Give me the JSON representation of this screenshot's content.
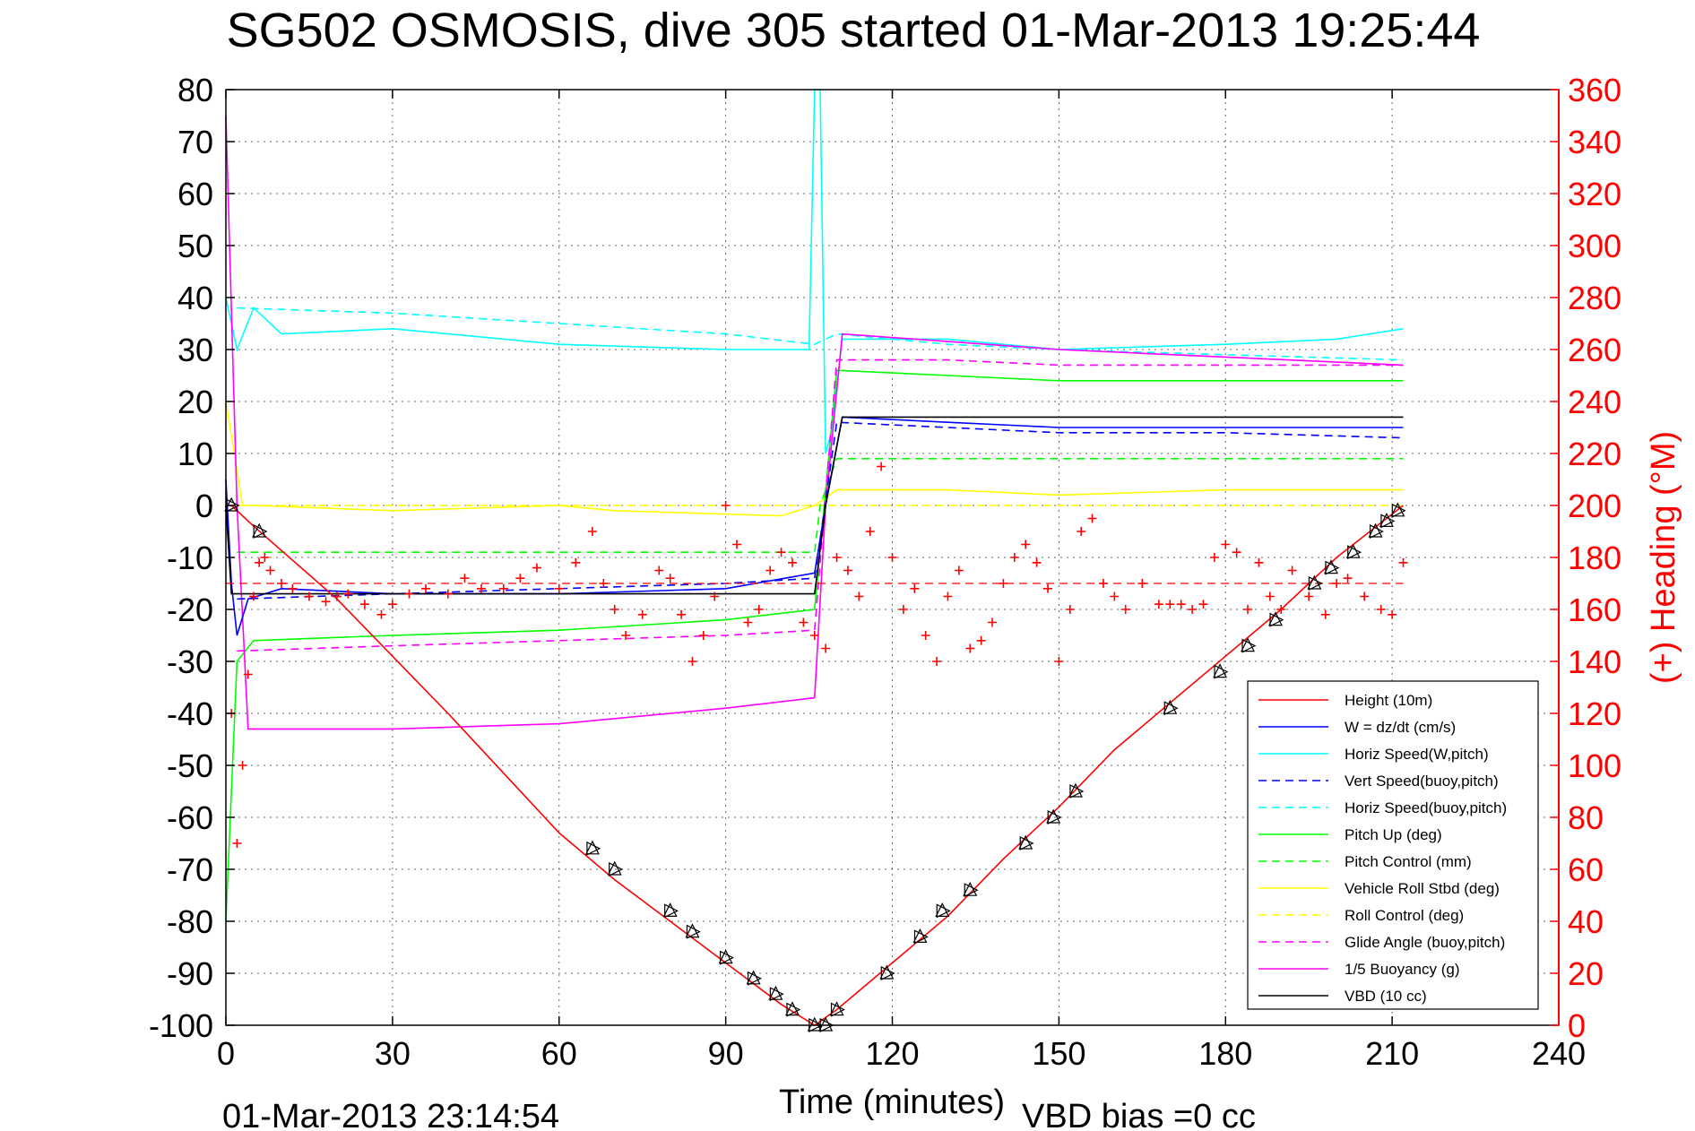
{
  "chart_data": {
    "type": "line",
    "title": "SG502 OSMOSIS, dive 305 started 01-Mar-2013 19:25:44",
    "xlabel": "Time (minutes)",
    "ylabel": "",
    "y2label": "(+) Heading (°M)",
    "footer_left": "01-Mar-2013 23:14:54",
    "footer_right": "VBD bias =0 cc",
    "xlim": [
      0,
      240
    ],
    "ylim": [
      -100,
      80
    ],
    "y2lim": [
      0,
      360
    ],
    "x_ticks": [
      0,
      30,
      60,
      90,
      120,
      150,
      180,
      210,
      240
    ],
    "y_ticks": [
      80,
      70,
      60,
      50,
      40,
      30,
      20,
      10,
      0,
      -10,
      -20,
      -30,
      -40,
      -50,
      -60,
      -70,
      -80,
      -90,
      -100
    ],
    "y2_ticks": [
      360,
      340,
      320,
      300,
      280,
      260,
      240,
      220,
      200,
      180,
      160,
      140,
      120,
      100,
      80,
      60,
      40,
      20,
      0
    ],
    "grid": true,
    "legend_position": "bottom-right",
    "colors": {
      "height": "#ff0000",
      "w": "#0000ff",
      "horiz": "#00ffff",
      "pitch": "#00ff00",
      "roll": "#ffff00",
      "glide": "#ff00ff",
      "buoy": "#ff00ff",
      "vbd": "#000000",
      "heading": "#ff0000"
    },
    "series": [
      {
        "name": "Height (10m)",
        "key": "height",
        "color": "#ff0000",
        "dash": "",
        "x": [
          0,
          1,
          5,
          20,
          40,
          60,
          70,
          80,
          90,
          100,
          106,
          110,
          120,
          130,
          140,
          150,
          160,
          170,
          180,
          190,
          200,
          212
        ],
        "y": [
          0,
          0,
          -4,
          -18,
          -40,
          -63,
          -72,
          -80,
          -88,
          -96,
          -100,
          -97,
          -88,
          -79,
          -68,
          -58,
          -47,
          -38,
          -29,
          -20,
          -10,
          0
        ]
      },
      {
        "name": "W = dz/dt (cm/s)",
        "key": "w",
        "color": "#0000ff",
        "dash": "",
        "x": [
          0,
          1,
          2,
          4,
          10,
          30,
          60,
          90,
          106,
          108,
          111,
          130,
          150,
          180,
          212
        ],
        "y": [
          5,
          -15,
          -25,
          -18,
          -16,
          -17,
          -17,
          -16,
          -13,
          0,
          17,
          16,
          15,
          15,
          15
        ]
      },
      {
        "name": "Horiz Speed(W,pitch)",
        "key": "horiz",
        "color": "#00ffff",
        "dash": "",
        "x": [
          0,
          1,
          2,
          5,
          10,
          30,
          60,
          90,
          105,
          106,
          107,
          108,
          109,
          111,
          130,
          150,
          180,
          200,
          212
        ],
        "y": [
          40,
          35,
          30,
          38,
          33,
          34,
          31,
          30,
          30,
          80,
          80,
          10,
          14,
          32,
          32,
          30,
          31,
          32,
          34
        ]
      },
      {
        "name": "Vert Speed(buoy,pitch)",
        "key": "vertb",
        "color": "#0000ff",
        "dash": "9,6",
        "x": [
          2,
          30,
          60,
          90,
          106,
          110,
          130,
          150,
          180,
          212
        ],
        "y": [
          -18,
          -17,
          -16,
          -15,
          -14,
          16,
          15,
          14,
          14,
          13
        ]
      },
      {
        "name": "Horiz Speed(buoy,pitch)",
        "key": "horizb",
        "color": "#00ffff",
        "dash": "9,6",
        "x": [
          2,
          30,
          60,
          90,
          106,
          110,
          130,
          150,
          180,
          212
        ],
        "y": [
          38,
          37,
          35,
          33,
          31,
          33,
          31,
          30,
          29,
          28
        ]
      },
      {
        "name": "Pitch Up (deg)",
        "key": "pitch",
        "color": "#00ff00",
        "dash": "",
        "x": [
          0,
          2,
          5,
          30,
          60,
          90,
          106,
          110,
          130,
          150,
          180,
          212
        ],
        "y": [
          -80,
          -30,
          -26,
          -25,
          -24,
          -22,
          -20,
          26,
          25,
          24,
          24,
          24
        ]
      },
      {
        "name": "Pitch Control (mm)",
        "key": "pitchc",
        "color": "#00ff00",
        "dash": "9,6",
        "x": [
          2,
          106,
          107,
          110,
          212
        ],
        "y": [
          -9,
          -9,
          0,
          9,
          9
        ]
      },
      {
        "name": "Vehicle Roll Stbd (deg)",
        "key": "roll",
        "color": "#ffff00",
        "dash": "",
        "x": [
          0,
          3,
          5,
          30,
          60,
          70,
          100,
          106,
          110,
          130,
          150,
          180,
          212
        ],
        "y": [
          20,
          0,
          0,
          -1,
          0,
          -1,
          -2,
          0,
          3,
          3,
          2,
          3,
          3
        ]
      },
      {
        "name": "Roll Control (deg)",
        "key": "rollc",
        "color": "#ffff00",
        "dash": "9,6",
        "x": [
          2,
          106,
          110,
          212
        ],
        "y": [
          0,
          0,
          0,
          0
        ]
      },
      {
        "name": "Glide Angle (buoy,pitch)",
        "key": "glide",
        "color": "#ff00ff",
        "dash": "9,6",
        "x": [
          2,
          30,
          60,
          90,
          106,
          110,
          130,
          150,
          180,
          212
        ],
        "y": [
          -28,
          -27,
          -26,
          -25,
          -24,
          28,
          28,
          27,
          27,
          27
        ]
      },
      {
        "name": "1/5 Buoyancy (g)",
        "key": "buoy",
        "color": "#ff00ff",
        "dash": "",
        "x": [
          0,
          2,
          4,
          30,
          60,
          90,
          106,
          108,
          111,
          150,
          212
        ],
        "y": [
          75,
          0,
          -43,
          -43,
          -42,
          -39,
          -37,
          0,
          33,
          30,
          27
        ]
      },
      {
        "name": "VBD (10 cc)",
        "key": "vbd",
        "color": "#000000",
        "dash": "",
        "x": [
          0,
          1,
          2,
          106,
          108,
          111,
          212
        ],
        "y": [
          0,
          -17,
          -17,
          -17,
          0,
          17,
          17
        ]
      }
    ],
    "heading_points": {
      "name": "(+) Heading (°M)",
      "color": "#ff0000",
      "x": [
        1,
        2,
        3,
        4,
        5,
        6,
        7,
        8,
        10,
        12,
        15,
        18,
        20,
        22,
        25,
        28,
        30,
        33,
        36,
        40,
        43,
        46,
        50,
        53,
        56,
        60,
        63,
        66,
        68,
        70,
        72,
        75,
        78,
        80,
        82,
        84,
        86,
        88,
        90,
        92,
        94,
        96,
        98,
        100,
        102,
        104,
        106,
        108,
        110,
        112,
        114,
        116,
        118,
        120,
        122,
        124,
        126,
        128,
        130,
        132,
        134,
        136,
        138,
        140,
        142,
        144,
        146,
        148,
        150,
        152,
        154,
        156,
        158,
        160,
        162,
        165,
        168,
        170,
        172,
        174,
        176,
        178,
        180,
        182,
        184,
        186,
        188,
        190,
        192,
        195,
        198,
        200,
        202,
        205,
        208,
        210,
        212
      ],
      "y": [
        120,
        70,
        100,
        135,
        165,
        178,
        180,
        175,
        170,
        168,
        165,
        163,
        165,
        166,
        162,
        158,
        162,
        166,
        168,
        166,
        172,
        168,
        168,
        172,
        176,
        168,
        178,
        190,
        170,
        160,
        150,
        158,
        175,
        172,
        158,
        140,
        150,
        165,
        200,
        185,
        155,
        160,
        175,
        182,
        178,
        155,
        150,
        145,
        180,
        175,
        165,
        190,
        215,
        180,
        160,
        168,
        150,
        140,
        165,
        175,
        145,
        148,
        155,
        170,
        180,
        185,
        178,
        168,
        140,
        160,
        190,
        195,
        170,
        165,
        160,
        170,
        162,
        162,
        162,
        160,
        162,
        180,
        185,
        182,
        160,
        178,
        165,
        160,
        175,
        165,
        158,
        170,
        172,
        165,
        160,
        158,
        178
      ]
    },
    "triangle_markers": {
      "x": [
        1,
        6,
        66,
        70,
        80,
        84,
        90,
        95,
        99,
        102,
        106,
        108,
        110,
        119,
        125,
        129,
        134,
        144,
        149,
        153,
        170,
        179,
        184,
        189,
        196,
        199,
        203,
        207,
        209,
        211
      ],
      "y": [
        0,
        -5,
        -66,
        -70,
        -78,
        -82,
        -87,
        -91,
        -94,
        -97,
        -100,
        -100,
        -97,
        -90,
        -83,
        -78,
        -74,
        -65,
        -60,
        -55,
        -39,
        -32,
        -27,
        -22,
        -15,
        -12,
        -9,
        -5,
        -3,
        -1
      ]
    }
  }
}
